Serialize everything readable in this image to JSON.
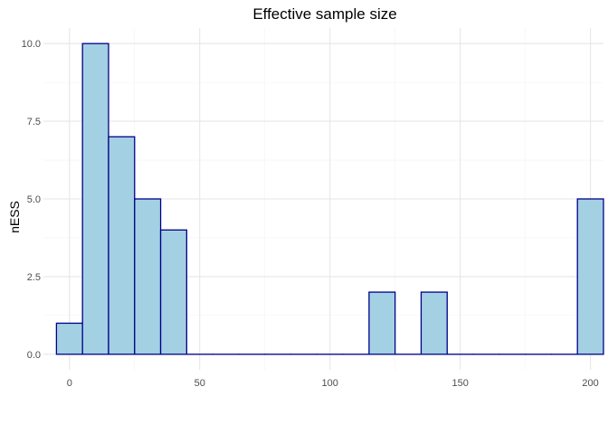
{
  "chart_data": {
    "type": "bar",
    "title": "Effective sample size",
    "xlabel": "",
    "ylabel": "nESS",
    "binwidth": 10,
    "bins": [
      {
        "x": 0,
        "count": 1
      },
      {
        "x": 10,
        "count": 10
      },
      {
        "x": 20,
        "count": 7
      },
      {
        "x": 30,
        "count": 5
      },
      {
        "x": 40,
        "count": 4
      },
      {
        "x": 50,
        "count": 0
      },
      {
        "x": 60,
        "count": 0
      },
      {
        "x": 70,
        "count": 0
      },
      {
        "x": 80,
        "count": 0
      },
      {
        "x": 90,
        "count": 0
      },
      {
        "x": 100,
        "count": 0
      },
      {
        "x": 110,
        "count": 0
      },
      {
        "x": 120,
        "count": 2
      },
      {
        "x": 130,
        "count": 0
      },
      {
        "x": 140,
        "count": 2
      },
      {
        "x": 150,
        "count": 0
      },
      {
        "x": 160,
        "count": 0
      },
      {
        "x": 170,
        "count": 0
      },
      {
        "x": 180,
        "count": 0
      },
      {
        "x": 190,
        "count": 0
      },
      {
        "x": 200,
        "count": 5
      }
    ],
    "xlim": [
      -10,
      205
    ],
    "ylim": [
      -0.5,
      10.5
    ],
    "x_ticks": [
      0,
      50,
      100,
      150,
      200
    ],
    "x_tick_labels": [
      "0",
      "50",
      "100",
      "150",
      "200"
    ],
    "y_ticks": [
      0,
      2.5,
      5,
      7.5,
      10
    ],
    "y_tick_labels": [
      "0.0",
      "2.5",
      "5.0",
      "7.5",
      "10.0"
    ],
    "grid": true,
    "colors": {
      "fill": "#a3d0e2",
      "outline": "#00008b"
    }
  }
}
